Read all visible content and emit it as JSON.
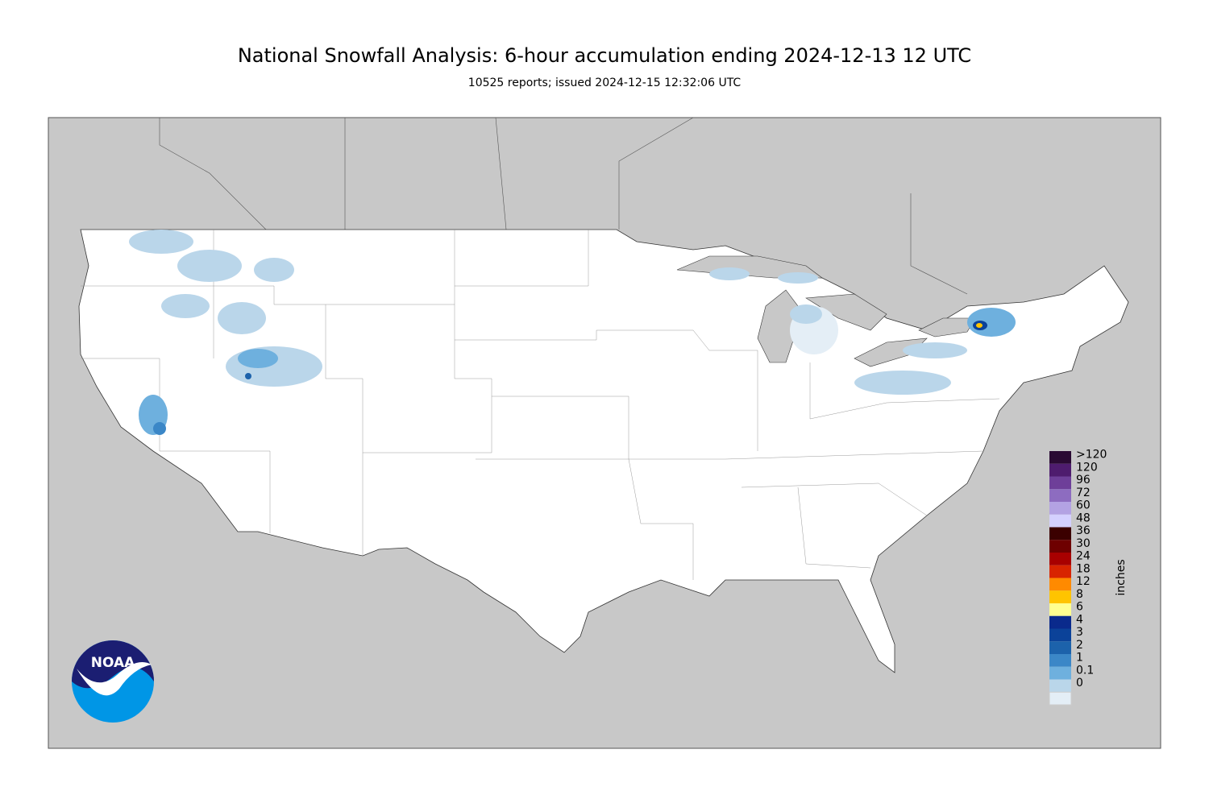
{
  "header": {
    "title": "National Snowfall Analysis: 6-hour accumulation ending 2024-12-13 12 UTC",
    "subtitle": "10525 reports; issued 2024-12-15 12:32:06 UTC"
  },
  "logo": {
    "text": "NOAA"
  },
  "legend": {
    "unit": "inches",
    "labels": [
      ">120",
      "120",
      "96",
      "72",
      "60",
      "48",
      "36",
      "30",
      "24",
      "18",
      "12",
      "8",
      "6",
      "4",
      "3",
      "2",
      "1",
      "0.1",
      "0"
    ],
    "colors": [
      "#2a0a33",
      "#4e1c6e",
      "#6e3f99",
      "#8d6cc0",
      "#b3a2e3",
      "#d4d0ff",
      "#3b0000",
      "#6e0000",
      "#a80000",
      "#d82400",
      "#ff8a00",
      "#ffc400",
      "#ffff90",
      "#0a2a8c",
      "#0b4299",
      "#1c62ab",
      "#3b87c7",
      "#6eb0de",
      "#bad6ea",
      "#e4eef6"
    ]
  }
}
